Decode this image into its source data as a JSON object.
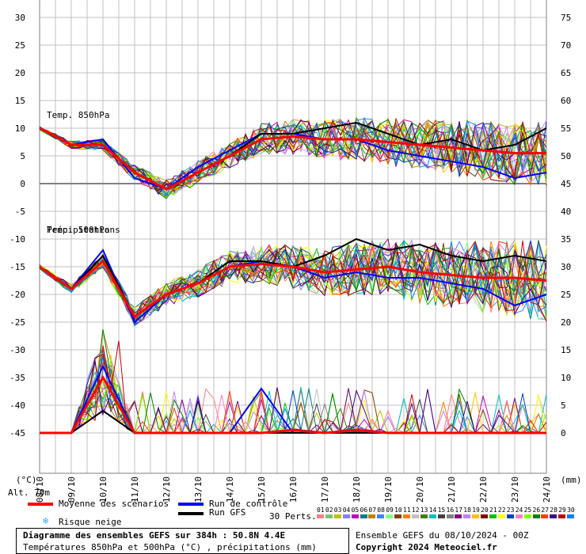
{
  "left_axis_ticks": [
    "30",
    "25",
    "20",
    "15",
    "10",
    "5",
    "0",
    "-5",
    "-10",
    "-15",
    "-20",
    "-25",
    "-30",
    "-35",
    "-40",
    "-45"
  ],
  "left_axis_values": [
    30,
    25,
    20,
    15,
    10,
    5,
    0,
    -5,
    -10,
    -15,
    -20,
    -25,
    -30,
    -35,
    -40,
    -45
  ],
  "right_axis_ticks": [
    "75",
    "70",
    "65",
    "60",
    "55",
    "50",
    "45",
    "40",
    "35",
    "30",
    "25",
    "20",
    "15",
    "10",
    "5",
    "0"
  ],
  "dates": [
    "08/10",
    "09/10",
    "10/10",
    "11/10",
    "12/10",
    "13/10",
    "14/10",
    "15/10",
    "16/10",
    "17/10",
    "18/10",
    "19/10",
    "20/10",
    "21/10",
    "22/10",
    "23/10",
    "24/10"
  ],
  "labels": {
    "temp850": "Temp. 850hPa",
    "temp500": "Temp. 500hPa",
    "precip": "Précipitations",
    "left_unit": "(°C)",
    "right_unit": "(mm)",
    "alt": "Alt. 70m",
    "moyenne": "Moyenne des scénarios",
    "controle": "Run de contrôle",
    "gfs": "Run GFS",
    "neige": "Risque neige",
    "perts": "30 Perts.",
    "footer_title": "Diagramme des ensembles GEFS sur 384h : 50.8N 4.4E",
    "footer_sub": "Températures 850hPa et 500hPa (°C) , précipitations (mm)",
    "ensemble": "Ensemble GEFS du 08/10/2024 - 00Z",
    "copyright": "Copyright 2024 Meteociel.fr"
  },
  "perturbations": [
    "01",
    "02",
    "03",
    "04",
    "05",
    "06",
    "07",
    "08",
    "09",
    "10",
    "11",
    "12",
    "13",
    "14",
    "15",
    "16",
    "17",
    "18",
    "19",
    "20",
    "21",
    "22",
    "23",
    "24",
    "25",
    "26",
    "27",
    "28",
    "29",
    "30"
  ],
  "colors": {
    "mean": "#ff0000",
    "control": "#0000ff",
    "gfs": "#000000",
    "grid": "#c0c0c0",
    "snow": "#3fa9f5",
    "perts": [
      "#ff8080",
      "#80c080",
      "#c0c000",
      "#8080ff",
      "#c000c0",
      "#008080",
      "#c08000",
      "#4080ff",
      "#80ff80",
      "#804000",
      "#ff8000",
      "#c0c0c0",
      "#408000",
      "#00c0c0",
      "#404040",
      "#808080",
      "#800080",
      "#c080ff",
      "#ffc000",
      "#800000",
      "#00c000",
      "#ffff00",
      "#0040c0",
      "#ff80c0",
      "#80ff00",
      "#008000",
      "#ff4000",
      "#400080",
      "#c00000",
      "#0080ff"
    ]
  },
  "chart_data": {
    "type": "line",
    "title": "Diagramme des ensembles GEFS sur 384h : 50.8N 4.4E",
    "x": [
      "08/10",
      "09/10",
      "10/10",
      "11/10",
      "12/10",
      "13/10",
      "14/10",
      "15/10",
      "16/10",
      "17/10",
      "18/10",
      "19/10",
      "20/10",
      "21/10",
      "22/10",
      "23/10",
      "24/10"
    ],
    "ylabel_left": "(°C)",
    "ylabel_right": "(mm)",
    "ylim_left": [
      -45,
      30
    ],
    "ylim_right": [
      0,
      75
    ],
    "grid": true,
    "series": [
      {
        "name": "Temp. 850hPa — Moyenne des scénarios",
        "axis": "left",
        "values": [
          10,
          7,
          7,
          2,
          -1,
          2,
          5,
          8,
          8.5,
          8,
          8,
          7.5,
          7,
          6.5,
          6,
          5.5,
          5.5
        ]
      },
      {
        "name": "Temp. 850hPa — Run de contrôle",
        "axis": "left",
        "values": [
          10,
          7,
          8,
          1,
          -1,
          3,
          6,
          9,
          9,
          8,
          8,
          6,
          5,
          4,
          3,
          1,
          2
        ]
      },
      {
        "name": "Temp. 850hPa — Run GFS",
        "axis": "left",
        "values": [
          10,
          7,
          7,
          2,
          -1,
          2,
          5,
          9,
          9,
          10,
          11,
          9,
          7,
          8,
          6,
          7,
          10
        ]
      },
      {
        "name": "Temp. 500hPa — Moyenne des scénarios",
        "axis": "left",
        "values": [
          -15,
          -19,
          -14,
          -24,
          -20,
          -18,
          -15,
          -14.5,
          -15,
          -16,
          -15.5,
          -15,
          -16,
          -16.5,
          -17,
          -17,
          -17.5
        ]
      },
      {
        "name": "Temp. 500hPa — Run de contrôle",
        "axis": "left",
        "values": [
          -15,
          -19,
          -12,
          -25,
          -20,
          -18,
          -15,
          -14,
          -15,
          -17,
          -16,
          -17,
          -17,
          -18,
          -19,
          -22,
          -20
        ]
      },
      {
        "name": "Temp. 500hPa — Run GFS",
        "axis": "left",
        "values": [
          -15,
          -19,
          -13,
          -24,
          -20,
          -18,
          -14,
          -14,
          -15,
          -13,
          -10,
          -12,
          -11,
          -13,
          -14,
          -13,
          -14
        ]
      },
      {
        "name": "Précipitations — Moyenne des scénarios",
        "axis": "right",
        "values": [
          0,
          0,
          10,
          0,
          0,
          0,
          0,
          0,
          0.5,
          0,
          0.5,
          0,
          0,
          0,
          0,
          0,
          0
        ]
      },
      {
        "name": "Précipitations — Run de contrôle",
        "axis": "right",
        "values": [
          0,
          0,
          12,
          0,
          0,
          0,
          0,
          8,
          0,
          0,
          0,
          0,
          0,
          0,
          0,
          0,
          0
        ]
      },
      {
        "name": "Précipitations — Run GFS",
        "axis": "right",
        "values": [
          0,
          0,
          4,
          0,
          0,
          0,
          0,
          0,
          0,
          0,
          0,
          0,
          0,
          0,
          0,
          0,
          0
        ]
      }
    ]
  }
}
